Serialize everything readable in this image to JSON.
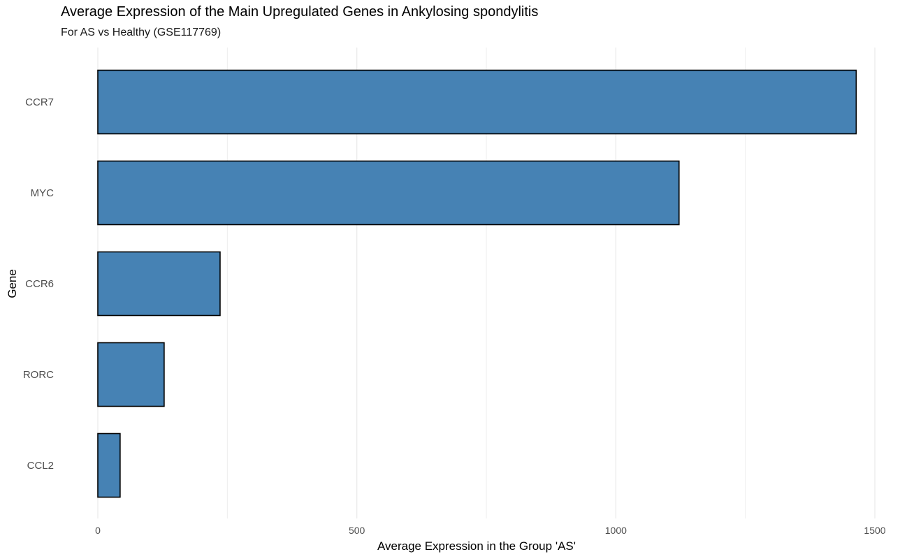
{
  "chart_data": {
    "type": "bar",
    "orientation": "horizontal",
    "title": "Average Expression of the Main Upregulated Genes in Ankylosing spondylitis",
    "subtitle": "For AS vs Healthy (GSE117769)",
    "xlabel": "Average Expression in the Group 'AS'",
    "ylabel": "Gene",
    "categories": [
      "CCR7",
      "MYC",
      "CCR6",
      "RORC",
      "CCL2"
    ],
    "values": [
      1464,
      1122,
      236,
      128,
      43
    ],
    "xlim": [
      0,
      1500
    ],
    "xticks": [
      0,
      500,
      1000,
      1500
    ],
    "xtick_labels": [
      "0",
      "500",
      "1000",
      "1500"
    ],
    "grid": true,
    "bar_fill": "#4682B4",
    "bar_outline": "#000000"
  }
}
